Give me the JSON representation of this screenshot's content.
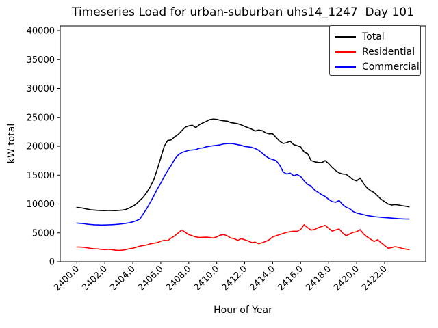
{
  "title": "Timeseries Load for urban-suburban uhs14_1247  Day 101",
  "chart_data": {
    "type": "line",
    "title": "Timeseries Load for urban-suburban uhs14_1247  Day 101",
    "xlabel": "Hour of Year",
    "ylabel": "kW total",
    "xlim": [
      2398.8125,
      2424.9375
    ],
    "ylim": [
      0,
      40830
    ],
    "x_ticks": [
      2400.0,
      2402.0,
      2404.0,
      2406.0,
      2408.0,
      2410.0,
      2412.0,
      2414.0,
      2416.0,
      2418.0,
      2420.0,
      2422.0
    ],
    "y_ticks": [
      0,
      5000,
      10000,
      15000,
      20000,
      25000,
      30000,
      35000,
      40000
    ],
    "x_start": 2400.0,
    "x_step": 0.25,
    "grid": false,
    "legend_position": "upper right",
    "series": [
      {
        "name": "Total",
        "color": "#000000",
        "values": [
          9400,
          9350,
          9250,
          9100,
          9000,
          8950,
          8900,
          8870,
          8850,
          8900,
          8870,
          8850,
          8900,
          8950,
          9050,
          9300,
          9625,
          10000,
          10600,
          11200,
          12000,
          13000,
          14200,
          16000,
          18000,
          20000,
          21000,
          21100,
          21660,
          22050,
          22700,
          23300,
          23515,
          23630,
          23230,
          23700,
          24020,
          24300,
          24615,
          24700,
          24650,
          24500,
          24400,
          24350,
          24100,
          24000,
          23900,
          23700,
          23430,
          23200,
          22960,
          22640,
          22800,
          22700,
          22330,
          22170,
          22170,
          21500,
          20870,
          20470,
          20600,
          20870,
          20275,
          20100,
          19880,
          19000,
          18700,
          17515,
          17300,
          17200,
          17160,
          17500,
          17000,
          16330,
          15800,
          15380,
          15200,
          15150,
          14700,
          14200,
          14000,
          14500,
          13500,
          12780,
          12300,
          11990,
          11400,
          10800,
          10410,
          10000,
          9820,
          9900,
          9820,
          9700,
          9625,
          9500
        ]
      },
      {
        "name": "Residential",
        "color": "#ff0000",
        "values": [
          2550,
          2530,
          2500,
          2400,
          2300,
          2250,
          2220,
          2130,
          2100,
          2150,
          2100,
          2000,
          1950,
          2000,
          2100,
          2250,
          2330,
          2500,
          2700,
          2805,
          2900,
          3100,
          3200,
          3314,
          3550,
          3700,
          3650,
          4106,
          4500,
          5000,
          5500,
          5100,
          4700,
          4497,
          4300,
          4200,
          4225,
          4250,
          4200,
          4106,
          4300,
          4600,
          4700,
          4500,
          4106,
          4000,
          3700,
          3988,
          3800,
          3600,
          3314,
          3400,
          3112,
          3300,
          3500,
          3800,
          4296,
          4500,
          4700,
          4900,
          5090,
          5200,
          5290,
          5250,
          5600,
          6400,
          5900,
          5480,
          5600,
          5900,
          6100,
          6300,
          5800,
          5290,
          5500,
          5680,
          5000,
          4500,
          4800,
          5090,
          5200,
          5560,
          4800,
          4300,
          3905,
          3515,
          3800,
          3300,
          2800,
          2330,
          2450,
          2600,
          2500,
          2300,
          2200,
          2100
        ]
      },
      {
        "name": "Commercial",
        "color": "#0000ff",
        "values": [
          6700,
          6650,
          6600,
          6500,
          6450,
          6400,
          6380,
          6360,
          6370,
          6390,
          6420,
          6450,
          6500,
          6570,
          6650,
          6750,
          6900,
          7100,
          7400,
          8300,
          9230,
          10300,
          11400,
          12580,
          13600,
          14760,
          15800,
          16700,
          17800,
          18500,
          18900,
          19100,
          19290,
          19350,
          19400,
          19650,
          19700,
          19900,
          20000,
          20080,
          20150,
          20250,
          20400,
          20450,
          20470,
          20400,
          20275,
          20150,
          19965,
          19900,
          19800,
          19600,
          19290,
          18800,
          18300,
          17900,
          17710,
          17500,
          16725,
          15540,
          15200,
          15350,
          14900,
          15100,
          14760,
          14000,
          13370,
          13100,
          12400,
          12000,
          11600,
          11300,
          10800,
          10410,
          10300,
          10600,
          9900,
          9430,
          9200,
          8700,
          8438,
          8300,
          8150,
          8000,
          7900,
          7800,
          7750,
          7700,
          7650,
          7600,
          7550,
          7500,
          7450,
          7420,
          7400,
          7380
        ]
      }
    ]
  }
}
